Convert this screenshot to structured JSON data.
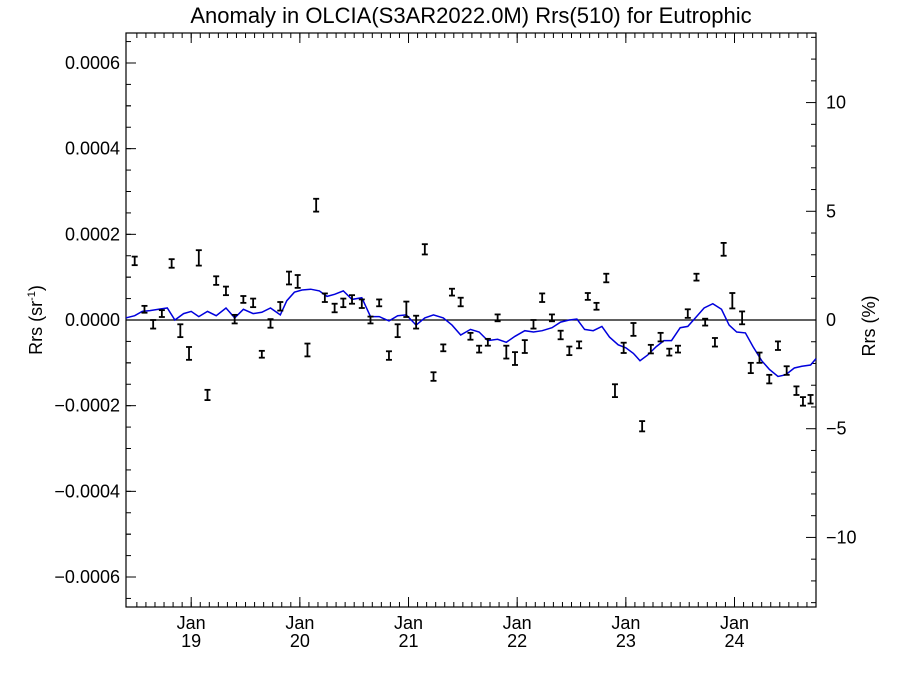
{
  "chart_data": {
    "type": "scatter",
    "title": "Anomaly in OLCIA(S3AR2022.0M) Rrs(510) for Eutrophic",
    "ylabel_left": "Rrs (sr",
    "ylabel_left_sup": "-1",
    "ylabel_left_end": ")",
    "ylabel_right": "Rrs (%)",
    "x_range": [
      2018.4,
      2024.75
    ],
    "ylim_left": [
      -0.00067,
      0.00067
    ],
    "ylim_right": [
      -13.2,
      13.2
    ],
    "left_ticks": [
      {
        "value": 0.0006,
        "label": "0.0006"
      },
      {
        "value": 0.0004,
        "label": "0.0004"
      },
      {
        "value": 0.0002,
        "label": "0.0002"
      },
      {
        "value": 0.0,
        "label": "0.0000"
      },
      {
        "value": -0.0002,
        "label": "−0.0002"
      },
      {
        "value": -0.0004,
        "label": "−0.0004"
      },
      {
        "value": -0.0006,
        "label": "−0.0006"
      }
    ],
    "right_ticks": [
      {
        "value": 10,
        "label": "10"
      },
      {
        "value": 5,
        "label": "5"
      },
      {
        "value": 0,
        "label": "0"
      },
      {
        "value": -5,
        "label": "−5"
      },
      {
        "value": -10,
        "label": "−10"
      }
    ],
    "x_ticks": [
      {
        "value": 2019.0,
        "month": "Jan",
        "year": "19"
      },
      {
        "value": 2020.0,
        "month": "Jan",
        "year": "20"
      },
      {
        "value": 2021.0,
        "month": "Jan",
        "year": "21"
      },
      {
        "value": 2022.0,
        "month": "Jan",
        "year": "22"
      },
      {
        "value": 2023.0,
        "month": "Jan",
        "year": "23"
      },
      {
        "value": 2024.0,
        "month": "Jan",
        "year": "24"
      }
    ],
    "zero_line": true,
    "series": [
      {
        "type": "scatter_errorbar",
        "color": "#000000",
        "points": [
          {
            "x": 2018.48,
            "y": 0.000138,
            "err": 1e-05
          },
          {
            "x": 2018.57,
            "y": 2.5e-05,
            "err": 8e-06
          },
          {
            "x": 2018.65,
            "y": -1e-05,
            "err": 1e-05
          },
          {
            "x": 2018.73,
            "y": 1.5e-05,
            "err": 8e-06
          },
          {
            "x": 2018.82,
            "y": 0.000132,
            "err": 1e-05
          },
          {
            "x": 2018.9,
            "y": -2.5e-05,
            "err": 1.5e-05
          },
          {
            "x": 2018.98,
            "y": -7.8e-05,
            "err": 1.5e-05
          },
          {
            "x": 2019.07,
            "y": 0.000145,
            "err": 1.8e-05
          },
          {
            "x": 2019.15,
            "y": -0.000175,
            "err": 1.2e-05
          },
          {
            "x": 2019.23,
            "y": 9.2e-05,
            "err": 1e-05
          },
          {
            "x": 2019.32,
            "y": 6.8e-05,
            "err": 1e-05
          },
          {
            "x": 2019.4,
            "y": 2e-06,
            "err": 1e-05
          },
          {
            "x": 2019.48,
            "y": 4.8e-05,
            "err": 8e-06
          },
          {
            "x": 2019.57,
            "y": 4e-05,
            "err": 1e-05
          },
          {
            "x": 2019.65,
            "y": -8e-05,
            "err": 8e-06
          },
          {
            "x": 2019.73,
            "y": -8e-06,
            "err": 1e-05
          },
          {
            "x": 2019.82,
            "y": 3.2e-05,
            "err": 1e-05
          },
          {
            "x": 2019.9,
            "y": 9.8e-05,
            "err": 1.5e-05
          },
          {
            "x": 2019.98,
            "y": 9e-05,
            "err": 1.5e-05
          },
          {
            "x": 2020.07,
            "y": -7e-05,
            "err": 1.5e-05
          },
          {
            "x": 2020.15,
            "y": 0.000268,
            "err": 1.5e-05
          },
          {
            "x": 2020.23,
            "y": 5.2e-05,
            "err": 1e-05
          },
          {
            "x": 2020.32,
            "y": 2.8e-05,
            "err": 1e-05
          },
          {
            "x": 2020.4,
            "y": 4e-05,
            "err": 1e-05
          },
          {
            "x": 2020.48,
            "y": 4.8e-05,
            "err": 1e-05
          },
          {
            "x": 2020.57,
            "y": 3.8e-05,
            "err": 1e-05
          },
          {
            "x": 2020.65,
            "y": 0.0,
            "err": 8e-06
          },
          {
            "x": 2020.73,
            "y": 4e-05,
            "err": 8e-06
          },
          {
            "x": 2020.82,
            "y": -8.3e-05,
            "err": 1e-05
          },
          {
            "x": 2020.9,
            "y": -2.5e-05,
            "err": 1.5e-05
          },
          {
            "x": 2020.98,
            "y": 2.5e-05,
            "err": 1.8e-05
          },
          {
            "x": 2021.07,
            "y": -5e-06,
            "err": 1.5e-05
          },
          {
            "x": 2021.15,
            "y": 0.000165,
            "err": 1.2e-05
          },
          {
            "x": 2021.23,
            "y": -0.000132,
            "err": 1e-05
          },
          {
            "x": 2021.32,
            "y": -6.5e-05,
            "err": 8e-06
          },
          {
            "x": 2021.4,
            "y": 6.5e-05,
            "err": 8e-06
          },
          {
            "x": 2021.48,
            "y": 4.2e-05,
            "err": 1e-05
          },
          {
            "x": 2021.57,
            "y": -3.8e-05,
            "err": 8e-06
          },
          {
            "x": 2021.65,
            "y": -6.8e-05,
            "err": 8e-06
          },
          {
            "x": 2021.73,
            "y": -5.2e-05,
            "err": 8e-06
          },
          {
            "x": 2021.82,
            "y": 5e-06,
            "err": 8e-06
          },
          {
            "x": 2021.9,
            "y": -7.5e-05,
            "err": 1.5e-05
          },
          {
            "x": 2021.98,
            "y": -9e-05,
            "err": 1.5e-05
          },
          {
            "x": 2022.07,
            "y": -6.2e-05,
            "err": 1.5e-05
          },
          {
            "x": 2022.15,
            "y": -1e-05,
            "err": 1e-05
          },
          {
            "x": 2022.23,
            "y": 5.2e-05,
            "err": 1e-05
          },
          {
            "x": 2022.32,
            "y": 5e-06,
            "err": 8e-06
          },
          {
            "x": 2022.4,
            "y": -3.5e-05,
            "err": 1e-05
          },
          {
            "x": 2022.48,
            "y": -7.2e-05,
            "err": 1e-05
          },
          {
            "x": 2022.57,
            "y": -5.8e-05,
            "err": 8e-06
          },
          {
            "x": 2022.65,
            "y": 5.5e-05,
            "err": 8e-06
          },
          {
            "x": 2022.73,
            "y": 3.2e-05,
            "err": 8e-06
          },
          {
            "x": 2022.82,
            "y": 9.8e-05,
            "err": 1e-05
          },
          {
            "x": 2022.9,
            "y": -0.000165,
            "err": 1.5e-05
          },
          {
            "x": 2022.98,
            "y": -6.5e-05,
            "err": 1.2e-05
          },
          {
            "x": 2023.07,
            "y": -2.2e-05,
            "err": 1.5e-05
          },
          {
            "x": 2023.15,
            "y": -0.000248,
            "err": 1.2e-05
          },
          {
            "x": 2023.23,
            "y": -6.8e-05,
            "err": 1e-05
          },
          {
            "x": 2023.32,
            "y": -4e-05,
            "err": 1e-05
          },
          {
            "x": 2023.4,
            "y": -7.5e-05,
            "err": 8e-06
          },
          {
            "x": 2023.48,
            "y": -6.8e-05,
            "err": 8e-06
          },
          {
            "x": 2023.57,
            "y": 1.5e-05,
            "err": 1e-05
          },
          {
            "x": 2023.65,
            "y": 0.0001,
            "err": 8e-06
          },
          {
            "x": 2023.73,
            "y": -5e-06,
            "err": 8e-06
          },
          {
            "x": 2023.82,
            "y": -5.2e-05,
            "err": 1e-05
          },
          {
            "x": 2023.9,
            "y": 0.000165,
            "err": 1.5e-05
          },
          {
            "x": 2023.98,
            "y": 4.5e-05,
            "err": 1.8e-05
          },
          {
            "x": 2024.07,
            "y": 5e-06,
            "err": 1.5e-05
          },
          {
            "x": 2024.15,
            "y": -0.000112,
            "err": 1.2e-05
          },
          {
            "x": 2024.23,
            "y": -8.8e-05,
            "err": 1.2e-05
          },
          {
            "x": 2024.32,
            "y": -0.000138,
            "err": 1e-05
          },
          {
            "x": 2024.4,
            "y": -6e-05,
            "err": 1e-05
          },
          {
            "x": 2024.48,
            "y": -0.000118,
            "err": 1e-05
          },
          {
            "x": 2024.57,
            "y": -0.000165,
            "err": 1e-05
          },
          {
            "x": 2024.63,
            "y": -0.00019,
            "err": 1e-05
          },
          {
            "x": 2024.7,
            "y": -0.000185,
            "err": 1e-05
          }
        ]
      },
      {
        "type": "line",
        "color": "#0000dd",
        "points": [
          [
            2018.4,
            5e-06
          ],
          [
            2018.48,
            1e-05
          ],
          [
            2018.55,
            2e-05
          ],
          [
            2018.62,
            2.2e-05
          ],
          [
            2018.7,
            2.5e-05
          ],
          [
            2018.78,
            2.8e-05
          ],
          [
            2018.85,
            0.0
          ],
          [
            2018.93,
            1.5e-05
          ],
          [
            2019.0,
            2e-05
          ],
          [
            2019.07,
            8e-06
          ],
          [
            2019.15,
            2e-05
          ],
          [
            2019.23,
            1e-05
          ],
          [
            2019.32,
            2.8e-05
          ],
          [
            2019.4,
            5e-06
          ],
          [
            2019.48,
            2.5e-05
          ],
          [
            2019.57,
            1.5e-05
          ],
          [
            2019.65,
            1.8e-05
          ],
          [
            2019.73,
            2.8e-05
          ],
          [
            2019.82,
            1.2e-05
          ],
          [
            2019.88,
            4.5e-05
          ],
          [
            2019.95,
            6.5e-05
          ],
          [
            2020.02,
            7e-05
          ],
          [
            2020.1,
            7.2e-05
          ],
          [
            2020.18,
            6.8e-05
          ],
          [
            2020.25,
            5.5e-05
          ],
          [
            2020.32,
            6e-05
          ],
          [
            2020.4,
            6.8e-05
          ],
          [
            2020.48,
            4.8e-05
          ],
          [
            2020.57,
            5.2e-05
          ],
          [
            2020.65,
            8e-06
          ],
          [
            2020.73,
            8e-06
          ],
          [
            2020.82,
            -2e-06
          ],
          [
            2020.9,
            1e-05
          ],
          [
            2020.98,
            1.2e-05
          ],
          [
            2021.07,
            -1.2e-05
          ],
          [
            2021.15,
            5e-06
          ],
          [
            2021.23,
            1.2e-05
          ],
          [
            2021.32,
            5e-06
          ],
          [
            2021.4,
            -1.2e-05
          ],
          [
            2021.48,
            -3.5e-05
          ],
          [
            2021.57,
            -2.2e-05
          ],
          [
            2021.65,
            -2.8e-05
          ],
          [
            2021.73,
            -4.8e-05
          ],
          [
            2021.82,
            -4.5e-05
          ],
          [
            2021.9,
            -5.2e-05
          ],
          [
            2021.98,
            -3.8e-05
          ],
          [
            2022.07,
            -2.5e-05
          ],
          [
            2022.15,
            -2.8e-05
          ],
          [
            2022.23,
            -2.5e-05
          ],
          [
            2022.32,
            -1.8e-05
          ],
          [
            2022.4,
            -5e-06
          ],
          [
            2022.48,
            -0.0
          ],
          [
            2022.55,
            2e-06
          ],
          [
            2022.62,
            -2.2e-05
          ],
          [
            2022.7,
            -2.5e-05
          ],
          [
            2022.78,
            -1.5e-05
          ],
          [
            2022.85,
            -4e-05
          ],
          [
            2022.93,
            -5.8e-05
          ],
          [
            2023.0,
            -6.5e-05
          ],
          [
            2023.07,
            -7.8e-05
          ],
          [
            2023.13,
            -9.5e-05
          ],
          [
            2023.2,
            -8.2e-05
          ],
          [
            2023.28,
            -6.2e-05
          ],
          [
            2023.35,
            -4.8e-05
          ],
          [
            2023.42,
            -4.8e-05
          ],
          [
            2023.5,
            -1.8e-05
          ],
          [
            2023.57,
            -1.5e-05
          ],
          [
            2023.65,
            8e-06
          ],
          [
            2023.72,
            2.8e-05
          ],
          [
            2023.8,
            3.8e-05
          ],
          [
            2023.88,
            2.5e-05
          ],
          [
            2023.95,
            -1.2e-05
          ],
          [
            2024.02,
            -2.8e-05
          ],
          [
            2024.1,
            -3e-05
          ],
          [
            2024.17,
            -6.2e-05
          ],
          [
            2024.25,
            -9.5e-05
          ],
          [
            2024.32,
            -0.000115
          ],
          [
            2024.4,
            -0.000132
          ],
          [
            2024.47,
            -0.000128
          ],
          [
            2024.55,
            -0.000112
          ],
          [
            2024.62,
            -0.000108
          ],
          [
            2024.7,
            -0.000105
          ],
          [
            2024.75,
            -9e-05
          ]
        ]
      }
    ]
  }
}
